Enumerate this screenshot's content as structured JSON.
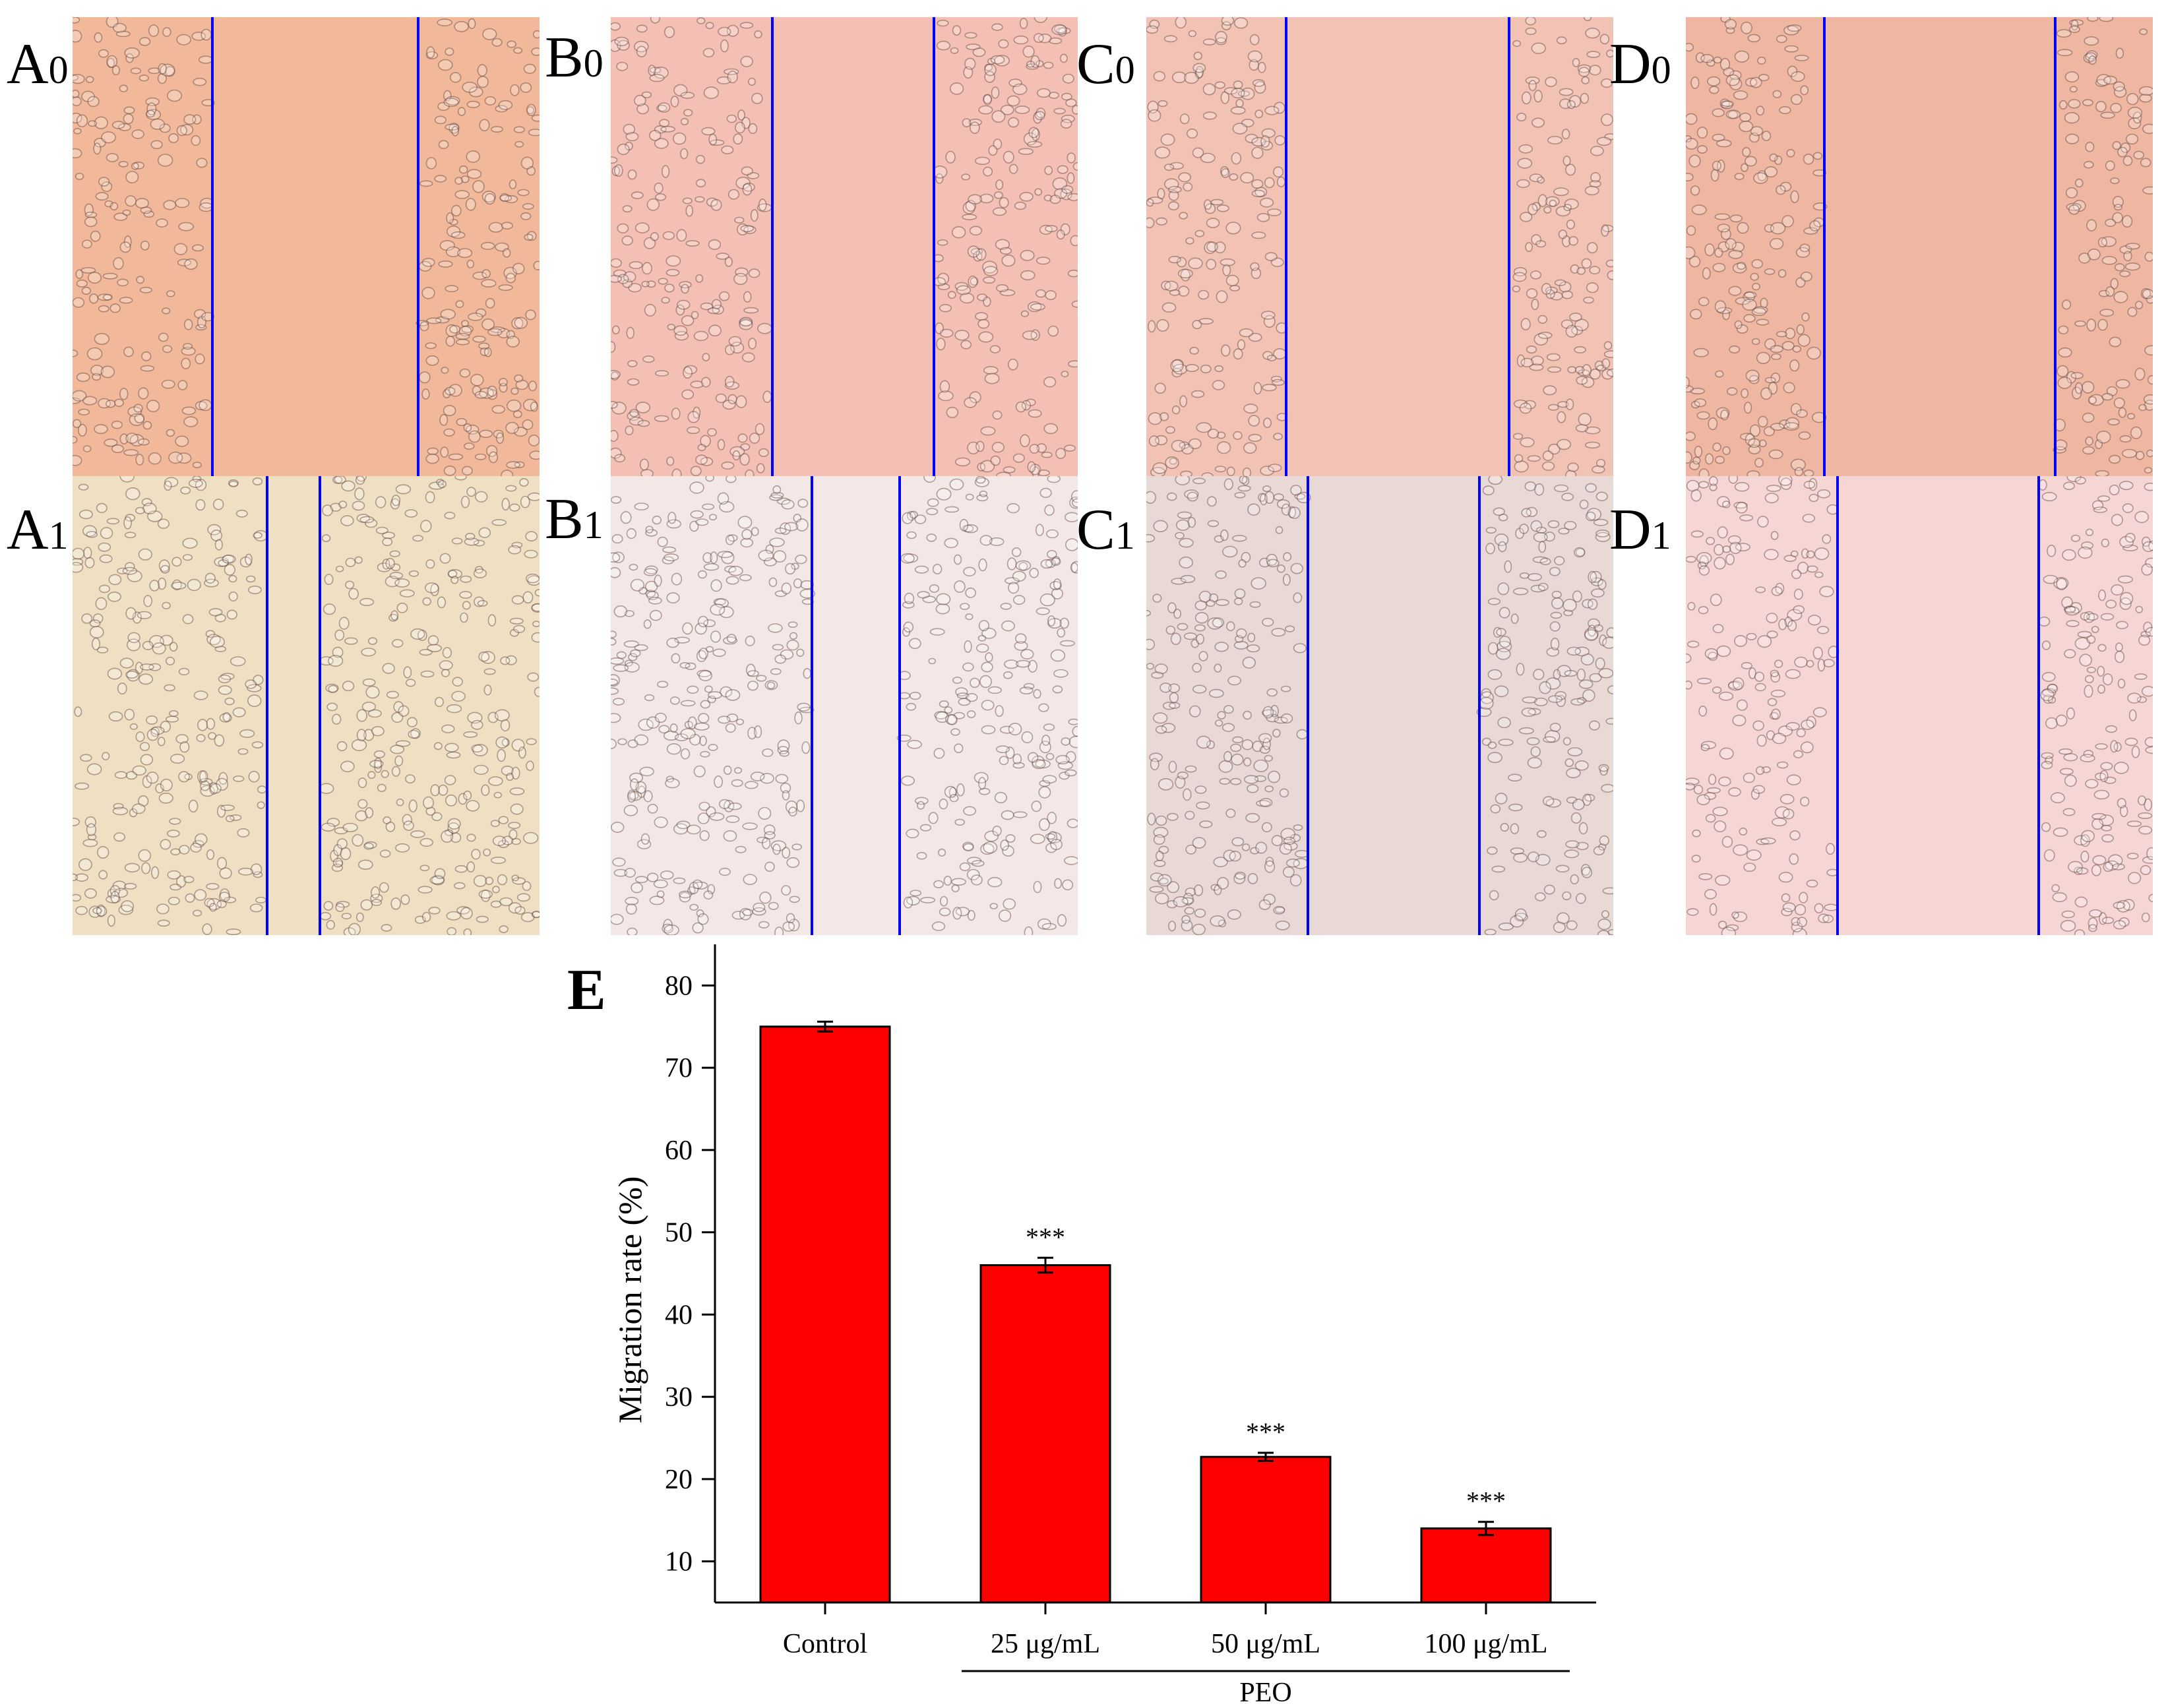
{
  "panels": [
    {
      "label_main": "A",
      "label_sub": "0",
      "tone": "#f2b89a"
    },
    {
      "label_main": "B",
      "label_sub": "0",
      "tone": "#f4c0b6"
    },
    {
      "label_main": "C",
      "label_sub": "0",
      "tone": "#f2c2b5"
    },
    {
      "label_main": "D",
      "label_sub": "0",
      "tone": "#efb7a2"
    },
    {
      "label_main": "A",
      "label_sub": "1",
      "tone": "#efe0c4"
    },
    {
      "label_main": "B",
      "label_sub": "1",
      "tone": "#f3e8e6"
    },
    {
      "label_main": "C",
      "label_sub": "1",
      "tone": "#e8d8d6"
    },
    {
      "label_main": "D",
      "label_sub": "1",
      "tone": "#f5d6d4"
    }
  ],
  "colors": {
    "bar": "#ff0000",
    "wound_line": "#0000ff"
  },
  "chart_label": "E",
  "chart_data": {
    "type": "bar",
    "categories": [
      "Control",
      "25 μg/mL",
      "50 μg/mL",
      "100 μg/mL"
    ],
    "values": [
      75,
      46,
      22.7,
      14
    ],
    "errors": [
      0.6,
      0.9,
      0.5,
      0.8
    ],
    "significance": [
      "",
      "***",
      "***",
      "***"
    ],
    "ylabel": "Migration rate (%)",
    "xlabel": "",
    "group_label": "PEO",
    "ylim": [
      5,
      85
    ],
    "yticks": [
      10,
      20,
      30,
      40,
      50,
      60,
      70,
      80
    ],
    "grid": false
  }
}
